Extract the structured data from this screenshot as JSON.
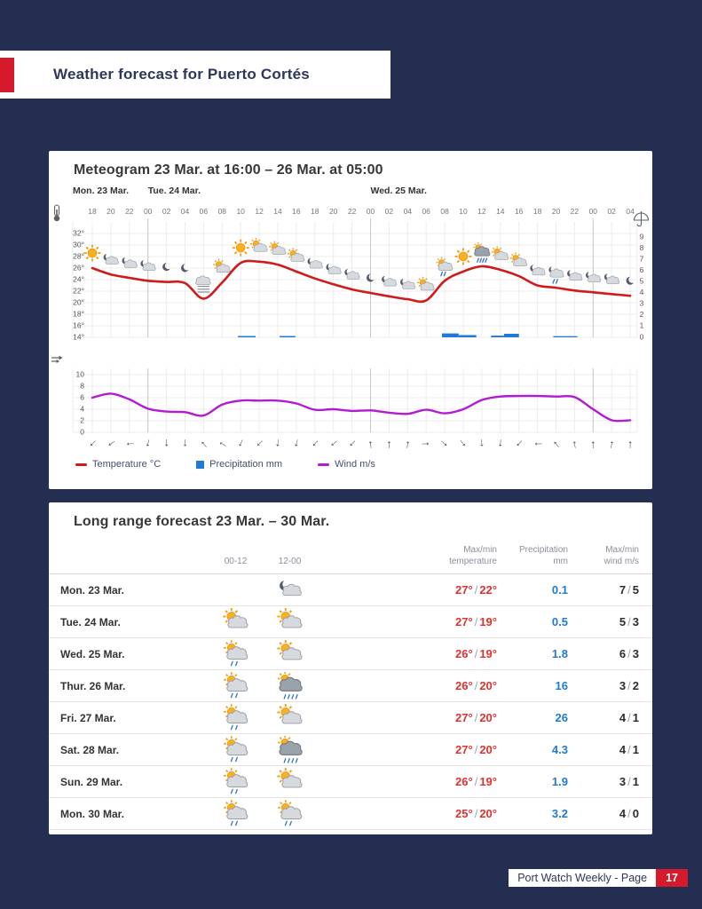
{
  "page": {
    "header_title": "Weather forecast for Puerto Cortés",
    "footer_label": "Port Watch Weekly - Page",
    "footer_page": "17"
  },
  "colors": {
    "background_navy": "#242e50",
    "accent_red": "#d51a2d",
    "temperature_line": "#cf1b1b",
    "precipitation_blue": "#1f7ad4",
    "wind_purple": "#b31ad4",
    "table_temp_red": "#e03131"
  },
  "chart_data": {
    "type": "line",
    "title": "Meteogram 23 Mar. at 16:00 – 26 Mar. at 05:00",
    "day_labels": [
      {
        "label": "Mon. 23 Mar.",
        "tick": -1
      },
      {
        "label": "Tue. 24 Mar.",
        "tick": 3
      },
      {
        "label": "Wed. 25 Mar.",
        "tick": 15
      }
    ],
    "x_hours": [
      "18",
      "20",
      "22",
      "00",
      "02",
      "04",
      "06",
      "08",
      "10",
      "12",
      "14",
      "16",
      "18",
      "20",
      "22",
      "00",
      "02",
      "04",
      "06",
      "08",
      "10",
      "12",
      "14",
      "16",
      "18",
      "20",
      "22",
      "00",
      "02",
      "04"
    ],
    "day_boundary_ticks": [
      3,
      15,
      27
    ],
    "axes": {
      "temperature": {
        "ticks": [
          "32°",
          "30°",
          "28°",
          "26°",
          "24°",
          "22°",
          "20°",
          "18°",
          "16°",
          "14°"
        ],
        "range": [
          14,
          32
        ],
        "icon": "thermometer-icon"
      },
      "precipitation": {
        "ticks": [
          "9",
          "8",
          "7",
          "6",
          "5",
          "4",
          "3",
          "2",
          "1",
          "0"
        ],
        "range": [
          0,
          9
        ],
        "icon": "umbrella-icon"
      },
      "wind": {
        "ticks": [
          "10",
          "8",
          "6",
          "4",
          "2",
          "0"
        ],
        "range": [
          0,
          10
        ],
        "icon": "wind-icon"
      }
    },
    "series": [
      {
        "name": "Temperature °C",
        "color": "#cf1b1b",
        "values": [
          26.0,
          24.9,
          24.3,
          23.8,
          23.6,
          23.4,
          20.7,
          23.5,
          26.9,
          27.1,
          26.6,
          25.4,
          24.2,
          23.2,
          22.3,
          21.7,
          21.1,
          20.6,
          20.4,
          23.8,
          25.4,
          26.3,
          25.7,
          24.6,
          23.0,
          22.6,
          22.1,
          21.8,
          21.5,
          21.2
        ]
      },
      {
        "name": "Wind m/s",
        "color": "#b31ad4",
        "values": [
          6.0,
          6.7,
          5.7,
          4.1,
          3.6,
          3.5,
          2.9,
          4.8,
          5.5,
          5.5,
          5.5,
          5.0,
          3.9,
          4.0,
          3.7,
          3.8,
          3.4,
          3.2,
          3.9,
          3.3,
          4.0,
          5.6,
          6.2,
          6.3,
          6.3,
          6.2,
          6.1,
          4.0,
          2.1,
          2.1
        ]
      },
      {
        "name": "Precipitation mm",
        "color": "#1f7ad4",
        "bars": [
          {
            "start": 7.85,
            "width": 0.95,
            "mm": 0.12
          },
          {
            "start": 10.1,
            "width": 0.85,
            "mm": 0.12
          },
          {
            "start": 18.85,
            "width": 0.9,
            "mm": 0.35
          },
          {
            "start": 19.75,
            "width": 0.95,
            "mm": 0.2
          },
          {
            "start": 21.5,
            "width": 0.7,
            "mm": 0.15
          },
          {
            "start": 22.2,
            "width": 0.8,
            "mm": 0.32
          },
          {
            "start": 24.85,
            "width": 1.3,
            "mm": 0.1
          }
        ]
      }
    ],
    "weather_symbols": [
      "sun",
      "fair-night",
      "fair-night",
      "fair-night",
      "night",
      "night",
      "fog",
      "fair-day",
      "sun",
      "fair-day",
      "fair-day",
      "fair-day",
      "fair-night",
      "fair-night",
      "fair-night",
      "night",
      "fair-night",
      "fair-night",
      "fair-day",
      "partly-rain-day",
      "sun",
      "rain-day",
      "fair-day",
      "fair-day",
      "fair-night",
      "partly-rain-night",
      "fair-night",
      "fair-night",
      "fair-night",
      "night"
    ],
    "wind_direction_deg": [
      225,
      235,
      265,
      195,
      180,
      178,
      318,
      300,
      205,
      228,
      188,
      195,
      222,
      230,
      225,
      352,
      2,
      8,
      88,
      132,
      142,
      178,
      186,
      224,
      268,
      320,
      350,
      0,
      8,
      2
    ],
    "legend": [
      {
        "label": "Temperature °C",
        "color": "#cf1b1b",
        "marker": "line"
      },
      {
        "label": "Precipitation mm",
        "color": "#1f7ad4",
        "marker": "square"
      },
      {
        "label": "Wind m/s",
        "color": "#b31ad4",
        "marker": "line"
      }
    ]
  },
  "table": {
    "title": "Long range forecast 23 Mar. – 30 Mar.",
    "headers": {
      "col1": "00-12",
      "col2": "12-00",
      "temp": "Max/min\ntemperature",
      "precip": "Precipitation\nmm",
      "wind": "Max/min\nwind m/s"
    },
    "rows": [
      {
        "day": "Mon. 23 Mar.",
        "icon_00_12": "",
        "icon_12_00": "fair-night",
        "temp_max": "27°",
        "temp_min": "22°",
        "precip": "0.1",
        "wind_max": "7",
        "wind_min": "5"
      },
      {
        "day": "Tue. 24 Mar.",
        "icon_00_12": "fair-day",
        "icon_12_00": "fair-day",
        "temp_max": "27°",
        "temp_min": "19°",
        "precip": "0.5",
        "wind_max": "5",
        "wind_min": "3"
      },
      {
        "day": "Wed. 25 Mar.",
        "icon_00_12": "partly-rain-day",
        "icon_12_00": "fair-day",
        "temp_max": "26°",
        "temp_min": "19°",
        "precip": "1.8",
        "wind_max": "6",
        "wind_min": "3"
      },
      {
        "day": "Thur. 26 Mar.",
        "icon_00_12": "partly-rain-day",
        "icon_12_00": "rain-day",
        "temp_max": "26°",
        "temp_min": "20°",
        "precip": "16",
        "wind_max": "3",
        "wind_min": "2"
      },
      {
        "day": "Fri. 27 Mar.",
        "icon_00_12": "partly-rain-day",
        "icon_12_00": "fair-day",
        "temp_max": "27°",
        "temp_min": "20°",
        "precip": "26",
        "wind_max": "4",
        "wind_min": "1"
      },
      {
        "day": "Sat. 28 Mar.",
        "icon_00_12": "partly-rain-day",
        "icon_12_00": "rain-day",
        "temp_max": "27°",
        "temp_min": "20°",
        "precip": "4.3",
        "wind_max": "4",
        "wind_min": "1"
      },
      {
        "day": "Sun. 29 Mar.",
        "icon_00_12": "partly-rain-day",
        "icon_12_00": "fair-day",
        "temp_max": "26°",
        "temp_min": "19°",
        "precip": "1.9",
        "wind_max": "3",
        "wind_min": "1"
      },
      {
        "day": "Mon. 30 Mar.",
        "icon_00_12": "partly-rain-day",
        "icon_12_00": "partly-rain-day",
        "temp_max": "25°",
        "temp_min": "20°",
        "precip": "3.2",
        "wind_max": "4",
        "wind_min": "0"
      }
    ]
  }
}
